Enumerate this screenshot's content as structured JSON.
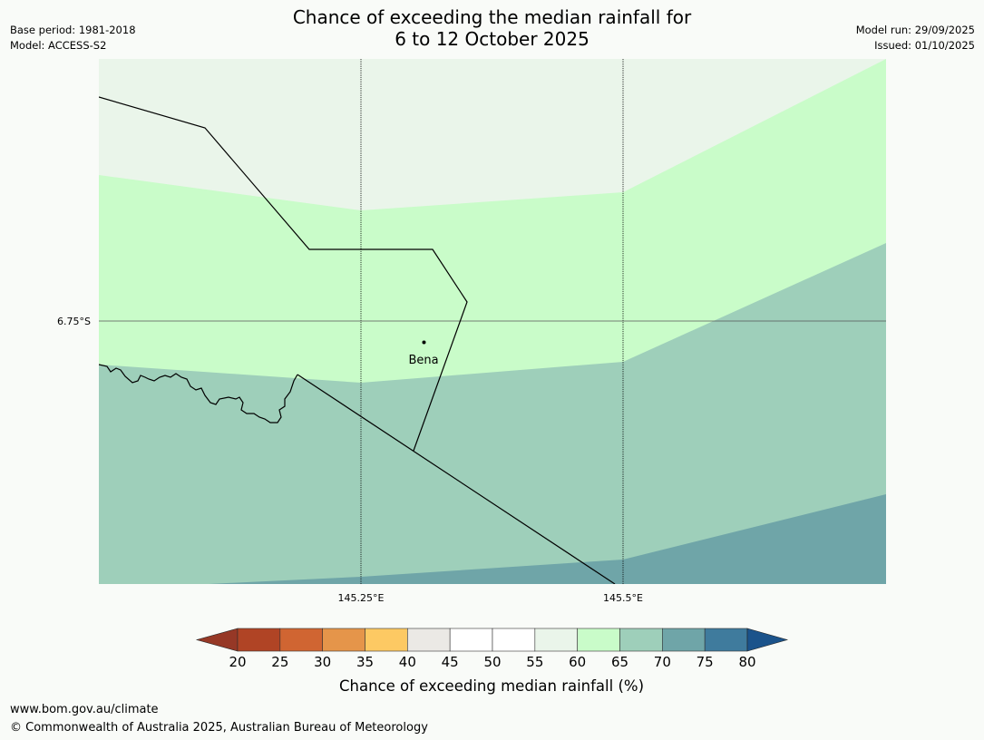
{
  "title": {
    "line1": "Chance of exceeding the median rainfall for",
    "line2": "6 to 12 October 2025"
  },
  "meta": {
    "base_period": "Base period: 1981-2018",
    "model": "Model: ACCESS-S2",
    "model_run": "Model run: 29/09/2025",
    "issued": "Issued: 01/10/2025"
  },
  "map": {
    "lat_label": "6.75°S",
    "lon_labels": [
      "145.25°E",
      "145.5°E"
    ],
    "place": "Bena",
    "colors": {
      "band_55_60": "#eaf5ea",
      "band_60_65": "#c9fcc9",
      "band_65_70": "#9ecfba",
      "band_70_75": "#6fa5a8"
    }
  },
  "colorbar": {
    "label": "Chance of exceeding median rainfall (%)",
    "ticks": [
      "20",
      "25",
      "30",
      "35",
      "40",
      "45",
      "50",
      "55",
      "60",
      "65",
      "70",
      "75",
      "80"
    ],
    "colors": [
      "#b04425",
      "#d06532",
      "#e5954a",
      "#fdc963",
      "#ebe9e5",
      "#ffffff",
      "#ffffff",
      "#eaf5ea",
      "#c9fcc9",
      "#9ecfba",
      "#6fa5a8",
      "#3f7b9d"
    ],
    "under_color": "#963826",
    "over_color": "#1b538b"
  },
  "footer": {
    "url": "www.bom.gov.au/climate",
    "copyright": "© Commonwealth of Australia 2025, Australian Bureau of Meteorology"
  }
}
